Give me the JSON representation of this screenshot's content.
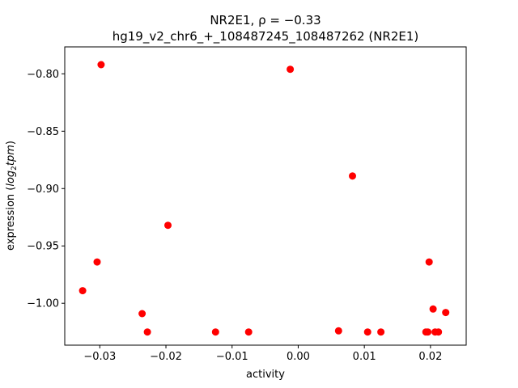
{
  "chart_data": {
    "type": "scatter",
    "title_line1": "NR2E1, ρ = −0.33",
    "title_line2": "hg19_v2_chr6_+_108487245_108487262 (NR2E1)",
    "xlabel": "activity",
    "ylabel_prefix": "expression (",
    "ylabel_math": "log",
    "ylabel_sub": "2",
    "ylabel_math2": "tpm",
    "ylabel_suffix": ")",
    "xlim": [
      -0.0353,
      0.0254
    ],
    "ylim": [
      -1.0365,
      -0.7765
    ],
    "xticks": [
      {
        "value": -0.03,
        "label": "−0.03"
      },
      {
        "value": -0.02,
        "label": "−0.02"
      },
      {
        "value": -0.01,
        "label": "−0.01"
      },
      {
        "value": 0.0,
        "label": "0.00"
      },
      {
        "value": 0.01,
        "label": "0.01"
      },
      {
        "value": 0.02,
        "label": "0.02"
      }
    ],
    "yticks": [
      {
        "value": -0.8,
        "label": "−0.80"
      },
      {
        "value": -0.85,
        "label": "−0.85"
      },
      {
        "value": -0.9,
        "label": "−0.90"
      },
      {
        "value": -0.95,
        "label": "−0.95"
      },
      {
        "value": -1.0,
        "label": "−1.00"
      }
    ],
    "marker_color": "#ff0000",
    "grid": false,
    "points": [
      {
        "x": -0.0298,
        "y": -0.792
      },
      {
        "x": -0.0012,
        "y": -0.796
      },
      {
        "x": 0.0082,
        "y": -0.889
      },
      {
        "x": -0.0197,
        "y": -0.932
      },
      {
        "x": -0.0304,
        "y": -0.964
      },
      {
        "x": 0.0198,
        "y": -0.964
      },
      {
        "x": -0.0326,
        "y": -0.989
      },
      {
        "x": -0.0236,
        "y": -1.009
      },
      {
        "x": -0.0228,
        "y": -1.025
      },
      {
        "x": -0.0125,
        "y": -1.025
      },
      {
        "x": -0.0075,
        "y": -1.025
      },
      {
        "x": 0.0061,
        "y": -1.024
      },
      {
        "x": 0.0105,
        "y": -1.025
      },
      {
        "x": 0.0125,
        "y": -1.025
      },
      {
        "x": 0.0193,
        "y": -1.025
      },
      {
        "x": 0.0196,
        "y": -1.025
      },
      {
        "x": 0.0204,
        "y": -1.005
      },
      {
        "x": 0.0207,
        "y": -1.025
      },
      {
        "x": 0.0212,
        "y": -1.025
      },
      {
        "x": 0.0223,
        "y": -1.008
      }
    ]
  }
}
